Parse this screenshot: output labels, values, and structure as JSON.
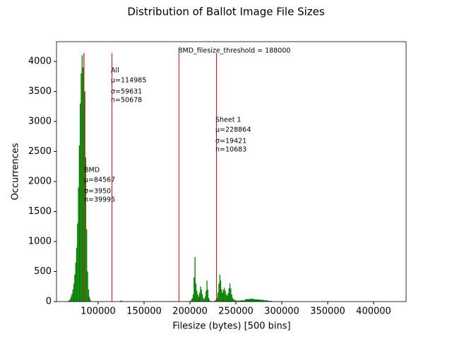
{
  "chart_data": {
    "type": "histogram",
    "title": "Distribution of Ballot Image File Sizes",
    "x_label": "Filesize (bytes) [500 bins]",
    "y_label": "Occurrences",
    "color": "#008000",
    "bins": [
      66000,
      67000,
      68000,
      69000,
      70000,
      71000,
      72000,
      73000,
      74000,
      75000,
      76000,
      77000,
      78000,
      79000,
      80000,
      81000,
      82000,
      83000,
      84000,
      85000,
      86000,
      87000,
      88000,
      89000,
      90000,
      91000,
      92000,
      124000,
      126000,
      200000,
      201000,
      202000,
      203000,
      204000,
      205000,
      206000,
      207000,
      208000,
      209000,
      210000,
      211000,
      212000,
      213000,
      214000,
      215000,
      216000,
      217000,
      218000,
      219000,
      220000,
      221000,
      222000,
      223000,
      224000,
      225000,
      226000,
      227000,
      228000,
      229000,
      230000,
      231000,
      232000,
      233000,
      234000,
      235000,
      236000,
      237000,
      238000,
      239000,
      240000,
      241000,
      242000,
      243000,
      244000,
      245000,
      246000,
      247000,
      248000,
      249000,
      250000,
      255000,
      260000,
      265000,
      270000,
      275000,
      280000,
      285000,
      290000,
      420000
    ],
    "counts": [
      5,
      10,
      20,
      40,
      80,
      130,
      200,
      300,
      450,
      650,
      900,
      1300,
      1900,
      2600,
      3300,
      3800,
      4100,
      3900,
      4130,
      3500,
      2400,
      1200,
      500,
      200,
      80,
      30,
      2,
      15,
      2,
      10,
      30,
      60,
      120,
      400,
      740,
      300,
      180,
      120,
      80,
      150,
      250,
      200,
      120,
      60,
      40,
      80,
      180,
      350,
      200,
      60,
      20,
      10,
      5,
      5,
      5,
      10,
      20,
      30,
      60,
      150,
      300,
      450,
      350,
      200,
      150,
      200,
      230,
      180,
      120,
      100,
      140,
      220,
      300,
      220,
      120,
      60,
      40,
      30,
      20,
      15,
      20,
      40,
      45,
      35,
      30,
      20,
      10,
      1
    ],
    "vlines": [
      84567,
      114985,
      188000,
      228864
    ],
    "vline_color": "#ff0000",
    "vline_ymax": 4140,
    "annotations": [
      {
        "lines": [
          "BMD",
          "μ=84567",
          "σ=3950",
          "n=39995"
        ]
      },
      {
        "lines": [
          "All",
          "μ=114985",
          "σ=59631",
          "n=50678"
        ]
      },
      {
        "lines": [
          "Sheet 1",
          "μ=228864",
          "σ=19421",
          "n=10683"
        ]
      },
      {
        "lines": [
          "BMD_filesize_threshold = 188000"
        ]
      }
    ],
    "xlim": [
      54615,
      435385
    ],
    "ylim": [
      0,
      4329
    ],
    "xticks": [
      {
        "value": 100000,
        "label": "100000"
      },
      {
        "value": 150000,
        "label": "150000"
      },
      {
        "value": 200000,
        "label": "200000"
      },
      {
        "value": 250000,
        "label": "250000"
      },
      {
        "value": 300000,
        "label": "300000"
      },
      {
        "value": 350000,
        "label": "350000"
      },
      {
        "value": 400000,
        "label": "400000"
      }
    ],
    "yticks": [
      0,
      500,
      1000,
      1500,
      2000,
      2500,
      3000,
      3500,
      4000
    ]
  }
}
